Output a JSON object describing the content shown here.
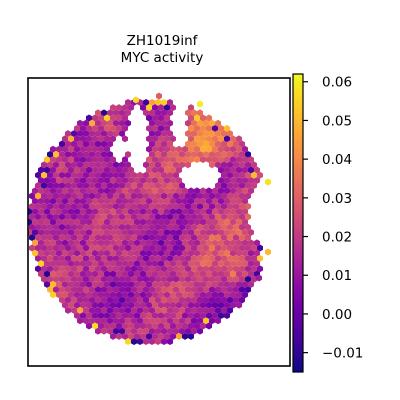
{
  "chart_data": {
    "type": "heatmap",
    "subtype": "hexbin spatial map",
    "title_lines": [
      "ZH1019inf",
      "MYC activity"
    ],
    "xlabel": "",
    "ylabel": "",
    "colormap": "plasma",
    "colorbar": {
      "min": -0.015,
      "max": 0.062,
      "ticks": [
        -0.01,
        0.0,
        0.01,
        0.02,
        0.03,
        0.04,
        0.05,
        0.06
      ],
      "tick_labels": [
        "−0.01",
        "0.00",
        "0.01",
        "0.02",
        "0.03",
        "0.04",
        "0.05",
        "0.06"
      ]
    },
    "axes_ticks_visible": false,
    "grid": false,
    "value_summary": {
      "typical_range": [
        0.0,
        0.035
      ],
      "max_observed": 0.06,
      "min_observed": -0.015
    }
  }
}
